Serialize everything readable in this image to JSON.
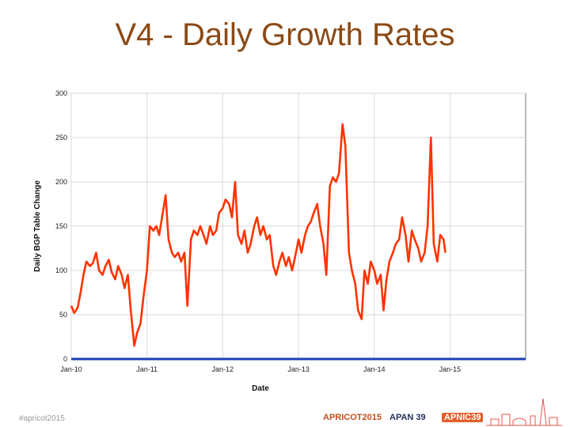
{
  "slide": {
    "title": "V4 - Daily Growth Rates"
  },
  "footer": {
    "hashtag": "#apricot2015",
    "logos": {
      "apricot": "APRICOT2015",
      "apan": "APAN 39",
      "apnic": "APNIC39"
    }
  },
  "colors": {
    "title": "#8B4A16",
    "series": "#FF3300",
    "baseline": "#1a3fb5",
    "grid": "#d9d9d9"
  },
  "chart_data": {
    "type": "line",
    "title": "",
    "xlabel": "Date",
    "ylabel": "Daily BGP Table Change",
    "ylim": [
      0,
      300
    ],
    "yticks": [
      0,
      50,
      100,
      150,
      200,
      250,
      300
    ],
    "xlim": [
      "2010-01-01",
      "2016-01-01"
    ],
    "xticks": [
      {
        "date": "2010-01-01",
        "label": "Jan-10"
      },
      {
        "date": "2011-01-01",
        "label": "Jan-11"
      },
      {
        "date": "2012-01-01",
        "label": "Jan-12"
      },
      {
        "date": "2013-01-01",
        "label": "Jan-13"
      },
      {
        "date": "2014-01-01",
        "label": "Jan-14"
      },
      {
        "date": "2015-01-01",
        "label": "Jan-15"
      }
    ],
    "grid": true,
    "series": [
      {
        "values": [
          [
            "2010-01-01",
            60
          ],
          [
            "2010-01-15",
            52
          ],
          [
            "2010-02-01",
            58
          ],
          [
            "2010-02-15",
            75
          ],
          [
            "2010-03-01",
            95
          ],
          [
            "2010-03-15",
            110
          ],
          [
            "2010-04-01",
            105
          ],
          [
            "2010-04-15",
            108
          ],
          [
            "2010-05-01",
            120
          ],
          [
            "2010-05-15",
            100
          ],
          [
            "2010-06-01",
            95
          ],
          [
            "2010-06-15",
            105
          ],
          [
            "2010-07-01",
            112
          ],
          [
            "2010-07-15",
            98
          ],
          [
            "2010-08-01",
            90
          ],
          [
            "2010-08-15",
            105
          ],
          [
            "2010-09-01",
            95
          ],
          [
            "2010-09-15",
            80
          ],
          [
            "2010-10-01",
            95
          ],
          [
            "2010-10-15",
            55
          ],
          [
            "2010-11-01",
            15
          ],
          [
            "2010-11-15",
            30
          ],
          [
            "2010-12-01",
            40
          ],
          [
            "2010-12-15",
            70
          ],
          [
            "2011-01-01",
            100
          ],
          [
            "2011-01-15",
            150
          ],
          [
            "2011-02-01",
            145
          ],
          [
            "2011-02-15",
            150
          ],
          [
            "2011-03-01",
            140
          ],
          [
            "2011-03-15",
            160
          ],
          [
            "2011-04-01",
            185
          ],
          [
            "2011-04-15",
            135
          ],
          [
            "2011-05-01",
            120
          ],
          [
            "2011-05-15",
            115
          ],
          [
            "2011-06-01",
            120
          ],
          [
            "2011-06-15",
            110
          ],
          [
            "2011-07-01",
            120
          ],
          [
            "2011-07-15",
            60
          ],
          [
            "2011-08-01",
            135
          ],
          [
            "2011-08-15",
            145
          ],
          [
            "2011-09-01",
            140
          ],
          [
            "2011-09-15",
            150
          ],
          [
            "2011-10-01",
            140
          ],
          [
            "2011-10-15",
            130
          ],
          [
            "2011-11-01",
            150
          ],
          [
            "2011-11-15",
            140
          ],
          [
            "2011-12-01",
            145
          ],
          [
            "2011-12-15",
            165
          ],
          [
            "2012-01-01",
            170
          ],
          [
            "2012-01-15",
            180
          ],
          [
            "2012-02-01",
            175
          ],
          [
            "2012-02-15",
            160
          ],
          [
            "2012-03-01",
            200
          ],
          [
            "2012-03-15",
            140
          ],
          [
            "2012-04-01",
            130
          ],
          [
            "2012-04-15",
            145
          ],
          [
            "2012-05-01",
            120
          ],
          [
            "2012-05-15",
            130
          ],
          [
            "2012-06-01",
            150
          ],
          [
            "2012-06-15",
            160
          ],
          [
            "2012-07-01",
            140
          ],
          [
            "2012-07-15",
            150
          ],
          [
            "2012-08-01",
            135
          ],
          [
            "2012-08-15",
            140
          ],
          [
            "2012-09-01",
            105
          ],
          [
            "2012-09-15",
            95
          ],
          [
            "2012-10-01",
            110
          ],
          [
            "2012-10-15",
            120
          ],
          [
            "2012-11-01",
            105
          ],
          [
            "2012-11-15",
            115
          ],
          [
            "2012-12-01",
            100
          ],
          [
            "2012-12-15",
            115
          ],
          [
            "2013-01-01",
            135
          ],
          [
            "2013-01-15",
            120
          ],
          [
            "2013-02-01",
            140
          ],
          [
            "2013-02-15",
            150
          ],
          [
            "2013-03-01",
            155
          ],
          [
            "2013-03-15",
            165
          ],
          [
            "2013-04-01",
            175
          ],
          [
            "2013-04-15",
            150
          ],
          [
            "2013-05-01",
            130
          ],
          [
            "2013-05-15",
            95
          ],
          [
            "2013-06-01",
            195
          ],
          [
            "2013-06-15",
            205
          ],
          [
            "2013-07-01",
            200
          ],
          [
            "2013-07-15",
            210
          ],
          [
            "2013-08-01",
            265
          ],
          [
            "2013-08-15",
            240
          ],
          [
            "2013-09-01",
            120
          ],
          [
            "2013-09-15",
            100
          ],
          [
            "2013-10-01",
            85
          ],
          [
            "2013-10-15",
            55
          ],
          [
            "2013-11-01",
            45
          ],
          [
            "2013-11-15",
            100
          ],
          [
            "2013-12-01",
            85
          ],
          [
            "2013-12-15",
            110
          ],
          [
            "2014-01-01",
            100
          ],
          [
            "2014-01-15",
            85
          ],
          [
            "2014-02-01",
            95
          ],
          [
            "2014-02-15",
            55
          ],
          [
            "2014-03-01",
            90
          ],
          [
            "2014-03-15",
            110
          ],
          [
            "2014-04-01",
            120
          ],
          [
            "2014-04-15",
            130
          ],
          [
            "2014-05-01",
            135
          ],
          [
            "2014-05-15",
            160
          ],
          [
            "2014-06-01",
            140
          ],
          [
            "2014-06-15",
            110
          ],
          [
            "2014-07-01",
            145
          ],
          [
            "2014-07-15",
            135
          ],
          [
            "2014-08-01",
            125
          ],
          [
            "2014-08-15",
            110
          ],
          [
            "2014-09-01",
            120
          ],
          [
            "2014-09-15",
            150
          ],
          [
            "2014-10-01",
            250
          ],
          [
            "2014-10-15",
            130
          ],
          [
            "2014-11-01",
            110
          ],
          [
            "2014-11-15",
            140
          ],
          [
            "2014-12-01",
            135
          ],
          [
            "2014-12-10",
            120
          ]
        ]
      }
    ]
  }
}
